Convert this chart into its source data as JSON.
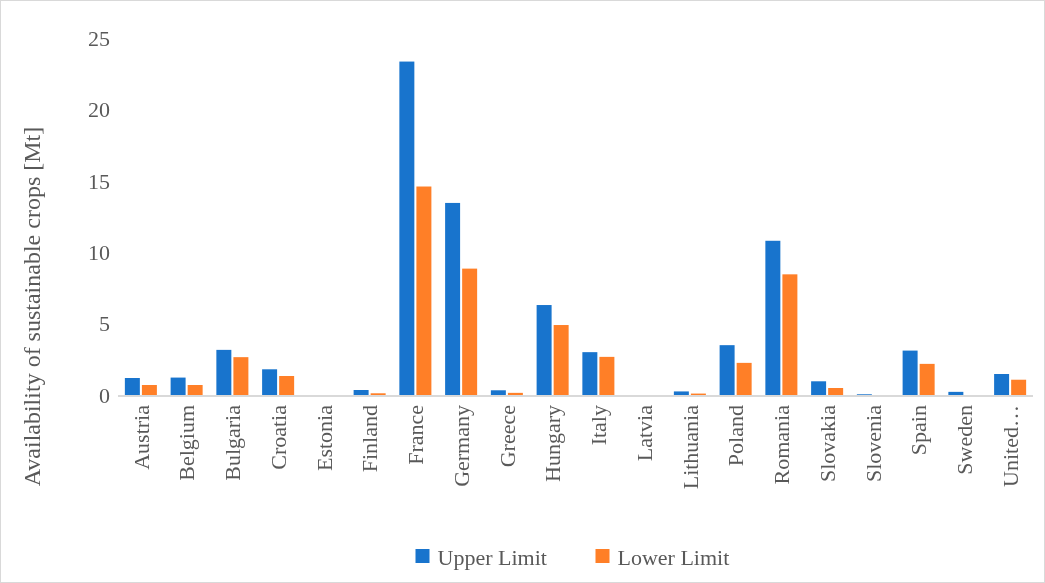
{
  "chart_data": {
    "type": "bar",
    "ylabel": "Availability of sustainable crops [Mt]",
    "categories": [
      "Austria",
      "Belgium",
      "Bulgaria",
      "Croatia",
      "Estonia",
      "Finland",
      "France",
      "Germany",
      "Greece",
      "Hungary",
      "Italy",
      "Latvia",
      "Lithuania",
      "Poland",
      "Romania",
      "Slovakia",
      "Slovenia",
      "Spain",
      "Sweden",
      "United…"
    ],
    "series": [
      {
        "name": "Upper Limit",
        "color": "#1874cd",
        "values": [
          1.19,
          1.22,
          3.16,
          1.8,
          0,
          0.35,
          23.35,
          13.45,
          0.33,
          6.3,
          3.0,
          0,
          0.25,
          3.49,
          10.8,
          0.96,
          0.05,
          3.11,
          0.22,
          1.47
        ]
      },
      {
        "name": "Lower Limit",
        "color": "#ff7f27",
        "values": [
          0.7,
          0.7,
          2.65,
          1.33,
          0,
          0.12,
          14.6,
          8.85,
          0.15,
          4.9,
          2.67,
          0,
          0.1,
          2.25,
          8.45,
          0.49,
          0,
          2.18,
          0,
          1.07
        ]
      }
    ],
    "ylim": [
      0,
      25
    ],
    "yticks": [
      0,
      5,
      10,
      15,
      20,
      25
    ],
    "grid": false,
    "legend": "bottom"
  }
}
